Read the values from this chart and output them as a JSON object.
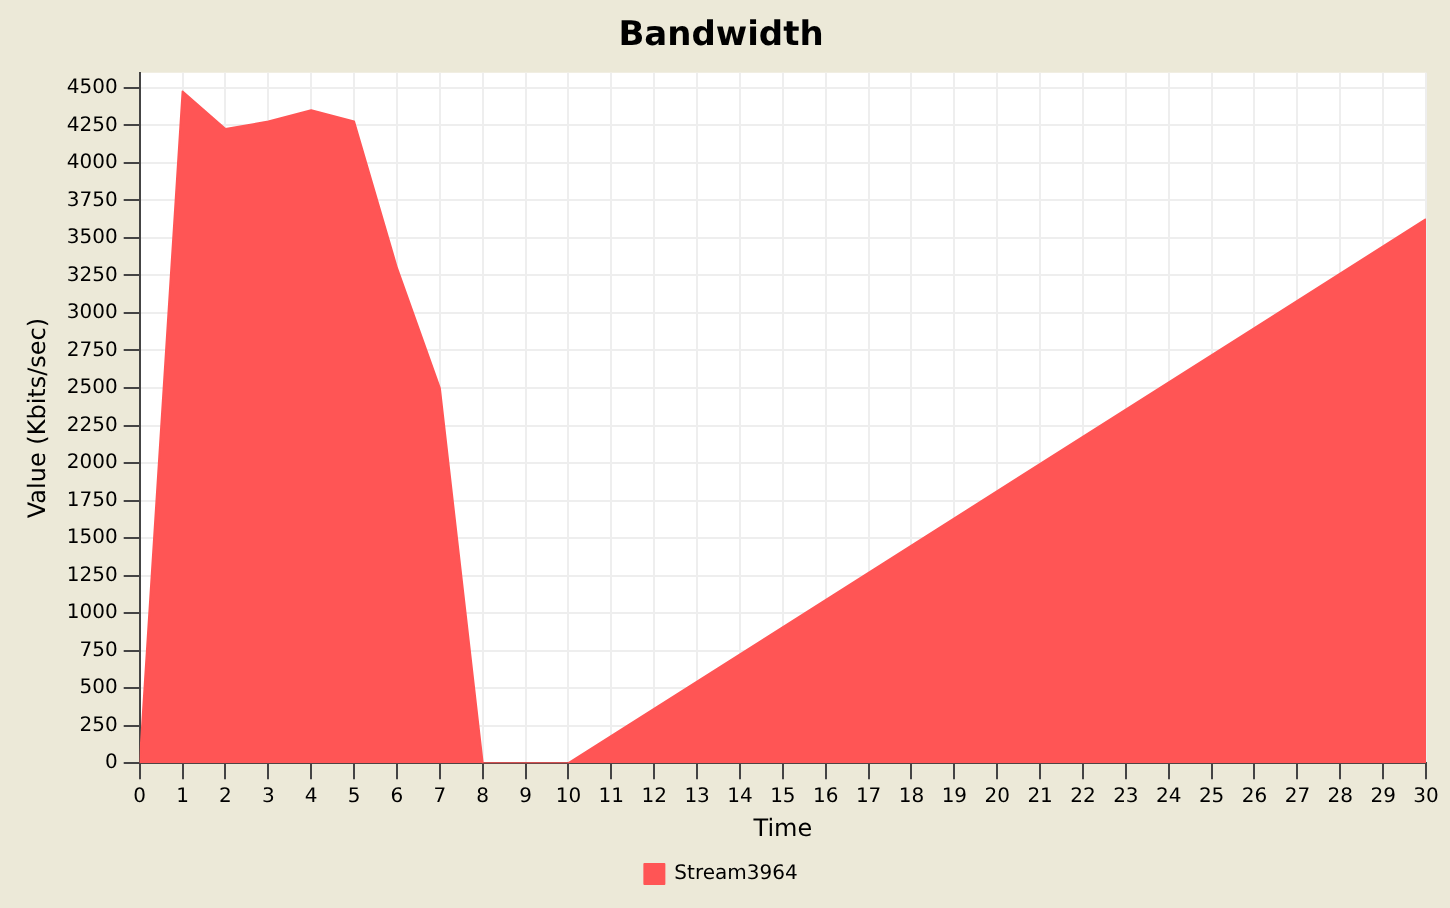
{
  "chart_data": {
    "type": "area",
    "title": "Bandwidth",
    "xlabel": "Time",
    "ylabel": "Value (Kbits/sec)",
    "series": [
      {
        "name": "Stream3964",
        "color": "#ff5555",
        "x": [
          0,
          1,
          2,
          3,
          4,
          5,
          6,
          7,
          8,
          9,
          10,
          30
        ],
        "values": [
          0,
          4475,
          4225,
          4275,
          4350,
          4275,
          3300,
          2500,
          0,
          0,
          0,
          3625
        ]
      }
    ],
    "xlim": [
      0,
      30
    ],
    "xticks": [
      0,
      1,
      2,
      3,
      4,
      5,
      6,
      7,
      8,
      9,
      10,
      11,
      12,
      13,
      14,
      15,
      16,
      17,
      18,
      19,
      20,
      21,
      22,
      23,
      24,
      25,
      26,
      27,
      28,
      29,
      30
    ],
    "ylim": [
      0,
      4600
    ],
    "yticks": [
      0,
      250,
      500,
      750,
      1000,
      1250,
      1500,
      1750,
      2000,
      2250,
      2500,
      2750,
      3000,
      3250,
      3500,
      3750,
      4000,
      4250,
      4500
    ],
    "grid": true,
    "legend": "bottom"
  }
}
